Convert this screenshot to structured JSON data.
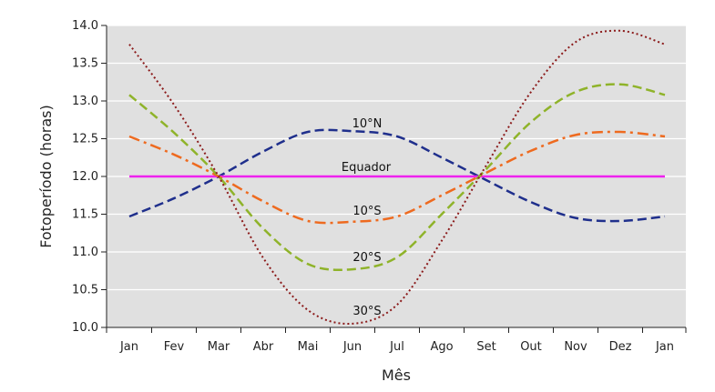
{
  "chart_data": {
    "type": "line",
    "title": "",
    "xlabel": "Mês",
    "ylabel": "Fotoperíodo (horas)",
    "categories": [
      "Jan",
      "Fev",
      "Mar",
      "Abr",
      "Mai",
      "Jun",
      "Jul",
      "Ago",
      "Set",
      "Out",
      "Nov",
      "Dez",
      "Jan"
    ],
    "ylim": [
      10.0,
      14.0
    ],
    "yticks": [
      "10.0",
      "10.5",
      "11.0",
      "11.5",
      "12.0",
      "12.5",
      "13.0",
      "13.5",
      "14.0"
    ],
    "grid": true,
    "background_color": "#e0e0e0",
    "series": [
      {
        "name": "10°N",
        "color": "#1f2f8c",
        "dash": "dashed",
        "values": [
          11.47,
          11.71,
          12.0,
          12.33,
          12.59,
          12.6,
          12.53,
          12.25,
          11.95,
          11.66,
          11.45,
          11.41,
          11.47
        ]
      },
      {
        "name": "Equador",
        "color": "#ee22ee",
        "dash": "solid",
        "values": [
          12.0,
          12.0,
          12.0,
          12.0,
          12.0,
          12.0,
          12.0,
          12.0,
          12.0,
          12.0,
          12.0,
          12.0,
          12.0
        ]
      },
      {
        "name": "10°S",
        "color": "#ee6a1f",
        "dash": "dashdot",
        "values": [
          12.53,
          12.29,
          12.0,
          11.67,
          11.41,
          11.4,
          11.47,
          11.75,
          12.05,
          12.34,
          12.55,
          12.59,
          12.53
        ]
      },
      {
        "name": "20°S",
        "color": "#8fb32a",
        "dash": "dashed",
        "values": [
          13.08,
          12.58,
          12.0,
          11.31,
          10.84,
          10.77,
          10.93,
          11.5,
          12.1,
          12.72,
          13.12,
          13.22,
          13.08
        ]
      },
      {
        "name": "30°S",
        "color": "#8b1a1a",
        "dash": "dotted",
        "values": [
          13.75,
          12.95,
          12.0,
          10.92,
          10.23,
          10.05,
          10.3,
          11.15,
          12.15,
          13.12,
          13.78,
          13.93,
          13.75
        ]
      }
    ],
    "series_labels": [
      "10°N",
      "Equador",
      "10°S",
      "20°S",
      "30°S"
    ]
  }
}
